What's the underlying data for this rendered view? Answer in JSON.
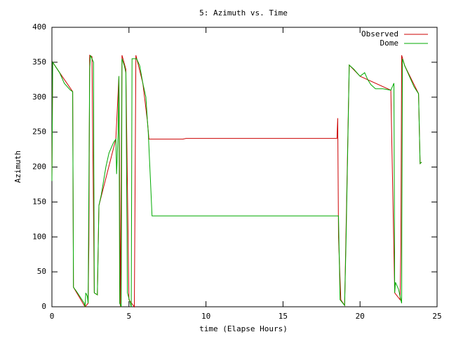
{
  "chart_data": {
    "type": "line",
    "title": "5: Azimuth vs. Time",
    "x_label": "time (Elapse Hours)",
    "y_label": "Azimuth",
    "xlim": [
      0,
      25
    ],
    "xticks": [
      0,
      5,
      10,
      15,
      20,
      25
    ],
    "ylim": [
      0,
      400
    ],
    "yticks": [
      0,
      50,
      100,
      150,
      200,
      250,
      300,
      350,
      400
    ],
    "grid": false,
    "legend": "top-right",
    "series": [
      {
        "name": "Observed",
        "color": "#cc0000",
        "x": [
          0,
          0.05,
          0.5,
          1.35,
          1.4,
          2.15,
          2.35,
          2.4,
          2.45,
          2.6,
          2.75,
          2.95,
          3.05,
          4.15,
          4.35,
          4.45,
          4.55,
          4.8,
          5.0,
          5.35,
          5.45,
          5.9,
          6.2,
          6.3,
          8.5,
          8.7,
          18.5,
          18.55,
          18.6,
          18.7,
          18.75,
          19.0,
          19.3,
          20.0,
          22.0,
          22.25,
          22.6,
          22.65,
          22.7,
          22.9,
          23.8,
          23.9,
          24.0
        ],
        "values": [
          185,
          350,
          335,
          308,
          28,
          0,
          5,
          90,
          360,
          358,
          20,
          17,
          145,
          240,
          330,
          0,
          360,
          340,
          10,
          0,
          360,
          320,
          265,
          240,
          240,
          241,
          241,
          270,
          100,
          40,
          10,
          2,
          346,
          330,
          310,
          20,
          10,
          90,
          360,
          345,
          305,
          205,
          207
        ]
      },
      {
        "name": "Dome",
        "color": "#00aa00",
        "x": [
          0,
          0.05,
          0.5,
          0.8,
          1.2,
          1.35,
          1.4,
          1.6,
          2.1,
          2.15,
          2.2,
          2.3,
          2.35,
          2.45,
          2.5,
          2.7,
          2.75,
          2.95,
          3.05,
          3.2,
          3.5,
          3.7,
          4.0,
          4.15,
          4.2,
          4.3,
          4.35,
          4.4,
          4.5,
          4.55,
          4.7,
          4.8,
          4.9,
          5.15,
          5.2,
          5.5,
          5.7,
          5.9,
          6.1,
          6.2,
          6.25,
          6.4,
          6.5,
          18.6,
          18.7,
          19.0,
          19.1,
          19.3,
          19.6,
          20.0,
          20.3,
          20.5,
          20.7,
          21.0,
          21.5,
          22.0,
          22.2,
          22.25,
          22.3,
          22.5,
          22.7,
          22.75,
          22.9,
          23.2,
          23.5,
          23.8,
          23.9,
          24.0
        ],
        "values": [
          180,
          350,
          335,
          320,
          310,
          308,
          28,
          22,
          5,
          0,
          20,
          15,
          5,
          340,
          360,
          350,
          20,
          17,
          145,
          160,
          200,
          220,
          235,
          240,
          190,
          250,
          330,
          5,
          0,
          355,
          345,
          335,
          20,
          0,
          355,
          355,
          345,
          320,
          300,
          265,
          250,
          180,
          130,
          130,
          10,
          2,
          100,
          346,
          340,
          330,
          335,
          325,
          318,
          312,
          312,
          310,
          320,
          20,
          35,
          25,
          5,
          355,
          345,
          330,
          315,
          305,
          205,
          207
        ]
      }
    ]
  }
}
